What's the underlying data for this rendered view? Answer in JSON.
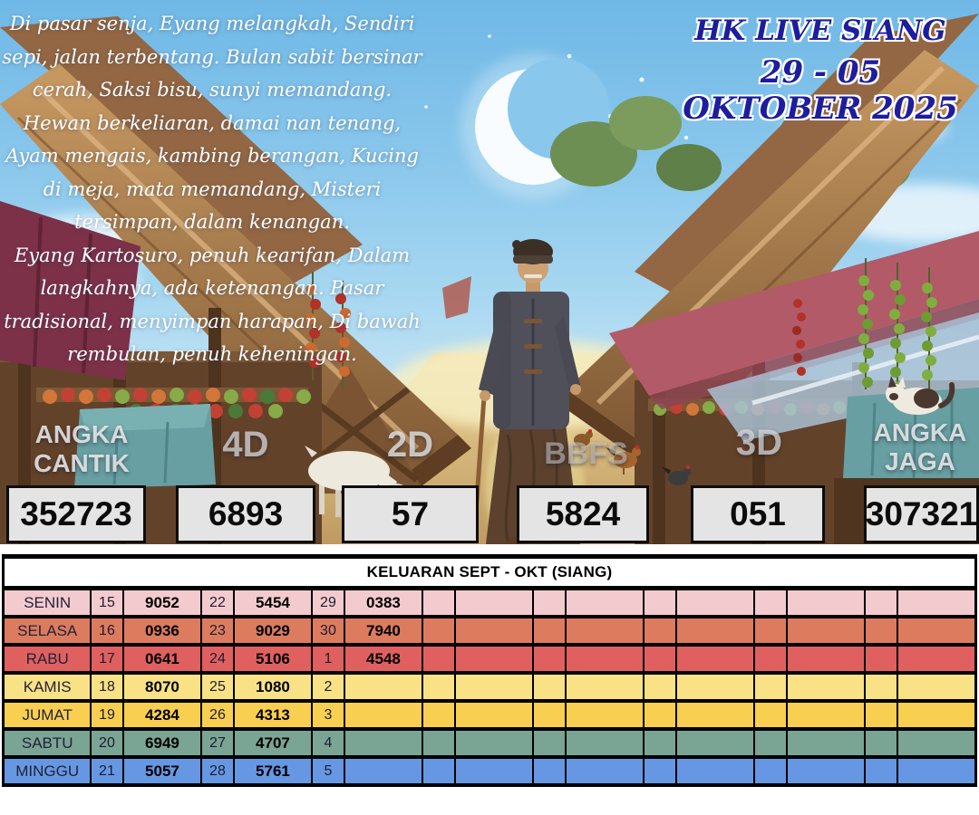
{
  "header": {
    "title": "HK LIVE SIANG",
    "date_range": "29 - 05 OKTOBER 2025",
    "title_color": "#1d1d9e"
  },
  "poem": {
    "lines": [
      "Di pasar senja, Eyang melangkah, Sendiri",
      "sepi, jalan terbentang. Bulan sabit bersinar",
      "cerah, Saksi bisu, sunyi memandang.",
      "Hewan berkeliaran, damai nan tenang,",
      "Ayam mengais, kambing berangan, Kucing",
      "di meja, mata memandang, Misteri",
      "tersimpan, dalam kenangan.",
      "Eyang Kartosuro, penuh kearifan, Dalam",
      "langkahnya, ada ketenangan. Pasar",
      "tradisional, menyimpan harapan, Di bawah",
      "rembulan, penuh keheningan."
    ]
  },
  "stats": [
    {
      "label": "ANGKA CANTIK",
      "value": "352723"
    },
    {
      "label": "4D",
      "value": "6893"
    },
    {
      "label": "2D",
      "value": "57"
    },
    {
      "label": "BBFS",
      "value": "5824"
    },
    {
      "label": "3D",
      "value": "051"
    },
    {
      "label": "ANGKA JAGA",
      "value": "307321"
    }
  ],
  "scene": {
    "elements": [
      "crescent-moon",
      "stars",
      "clouds",
      "market-stalls",
      "elder-with-cane",
      "goat",
      "cat",
      "chickens"
    ]
  },
  "table": {
    "title": "KELUARAN SEPT - OKT (SIANG)",
    "rows": [
      {
        "day": "SENIN",
        "color": "#f3cbce",
        "cells": [
          "15",
          "9052",
          "22",
          "5454",
          "29",
          "0383",
          "",
          "",
          "",
          "",
          "",
          "",
          "",
          "",
          "",
          ""
        ]
      },
      {
        "day": "SELASA",
        "color": "#dc7b5e",
        "cells": [
          "16",
          "0936",
          "23",
          "9029",
          "30",
          "7940",
          "",
          "",
          "",
          "",
          "",
          "",
          "",
          "",
          "",
          ""
        ]
      },
      {
        "day": "RABU",
        "color": "#e06060",
        "cells": [
          "17",
          "0641",
          "24",
          "5106",
          "1",
          "4548",
          "",
          "",
          "",
          "",
          "",
          "",
          "",
          "",
          "",
          ""
        ]
      },
      {
        "day": "KAMIS",
        "color": "#f9e286",
        "cells": [
          "18",
          "8070",
          "25",
          "1080",
          "2",
          "",
          "",
          "",
          "",
          "",
          "",
          "",
          "",
          "",
          "",
          ""
        ]
      },
      {
        "day": "JUMAT",
        "color": "#f9cf51",
        "cells": [
          "19",
          "4284",
          "26",
          "4313",
          "3",
          "",
          "",
          "",
          "",
          "",
          "",
          "",
          "",
          "",
          "",
          ""
        ]
      },
      {
        "day": "SABTU",
        "color": "#7aa494",
        "cells": [
          "20",
          "6949",
          "27",
          "4707",
          "4",
          "",
          "",
          "",
          "",
          "",
          "",
          "",
          "",
          "",
          "",
          ""
        ]
      },
      {
        "day": "MINGGU",
        "color": "#6697e2",
        "cells": [
          "21",
          "5057",
          "28",
          "5761",
          "5",
          "",
          "",
          "",
          "",
          "",
          "",
          "",
          "",
          "",
          "",
          ""
        ]
      }
    ]
  }
}
